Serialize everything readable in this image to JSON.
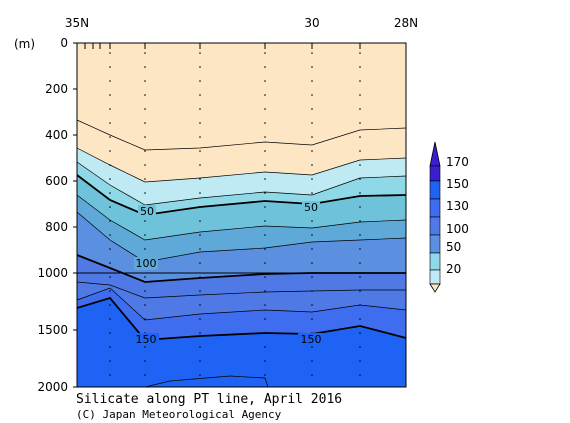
{
  "chart_data": {
    "type": "contour",
    "title": "Silicate along PT line, April 2016",
    "credit": "(C) Japan Meteorological Agency",
    "unit_label": "(m)",
    "x_axis": {
      "tick_labels": [
        {
          "text": "35N",
          "lat": 35
        },
        {
          "text": "30",
          "lat": 30
        },
        {
          "text": "28N",
          "lat": 28
        }
      ],
      "lat_range": [
        35,
        28
      ]
    },
    "y_axis": {
      "tick_labels": [
        "0",
        "200",
        "400",
        "600",
        "800",
        "1000",
        "1500",
        "2000"
      ],
      "upper_range": [
        0,
        1000
      ],
      "lower_range": [
        1000,
        2000
      ]
    },
    "colorbar": {
      "labels": [
        "20",
        "50",
        "100",
        "130",
        "150",
        "170"
      ]
    },
    "contour_labels": [
      "50",
      "50",
      "100",
      "150",
      "150"
    ],
    "colors": {
      "band_0": "#fde6c4",
      "band_1": "#bfeaf4",
      "band_2": "#8fd8e8",
      "band_3": "#6ec3da",
      "band_4": "#5fa9d8",
      "band_5": "#5b8fe0",
      "band_6": "#4f7ae6",
      "band_7": "#3f6df0",
      "band_8": "#1f63f4",
      "band_top": "#3a1fd0"
    }
  }
}
